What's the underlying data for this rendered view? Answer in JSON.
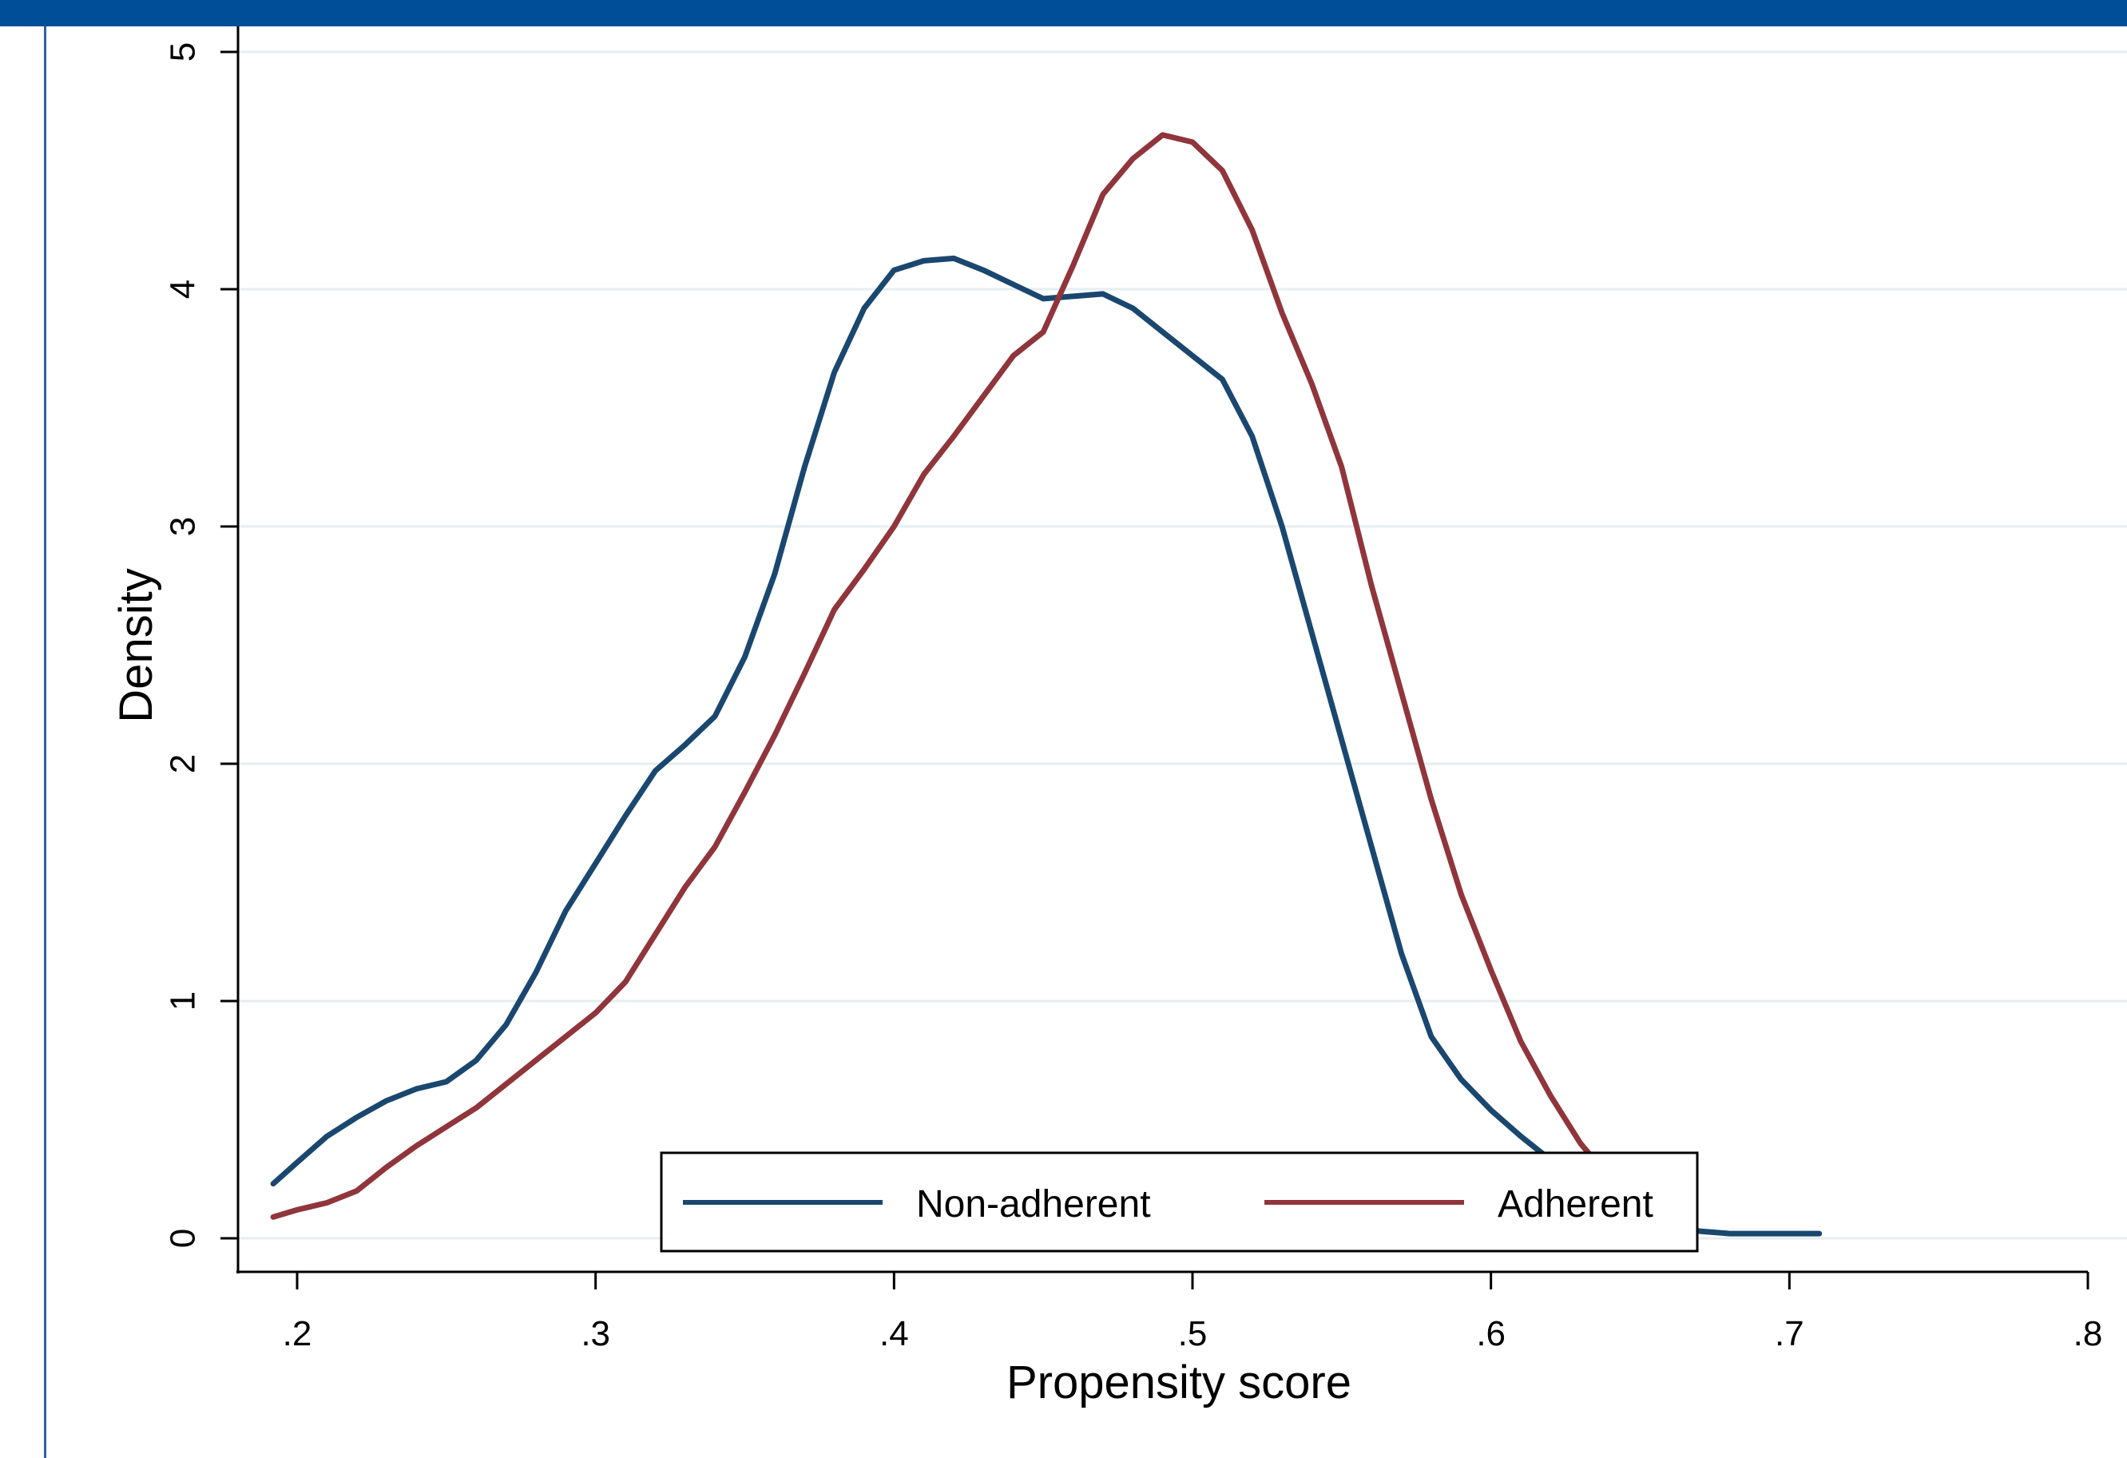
{
  "colors": {
    "header_bar": "#004e98",
    "left_rule": "#2f62a8",
    "gridline": "#e6eef0",
    "axis": "#000000"
  },
  "chart_data": {
    "type": "line",
    "title": "",
    "xlabel": "Propensity score",
    "ylabel": "Density",
    "xlim": [
      0.18,
      0.81
    ],
    "ylim": [
      0,
      5
    ],
    "x_ticks": [
      0.2,
      0.3,
      0.4,
      0.5,
      0.6,
      0.7,
      0.8
    ],
    "x_tick_labels": [
      ".2",
      ".3",
      ".4",
      ".5",
      ".6",
      ".7",
      ".8"
    ],
    "y_ticks": [
      0,
      1,
      2,
      3,
      4,
      5
    ],
    "y_tick_labels": [
      "0",
      "1",
      "2",
      "3",
      "4",
      "5"
    ],
    "grid": true,
    "legend_position": "bottom-center",
    "series": [
      {
        "name": "Non-adherent",
        "color": "#1a476f",
        "points": [
          [
            0.192,
            0.23
          ],
          [
            0.2,
            0.32
          ],
          [
            0.21,
            0.43
          ],
          [
            0.22,
            0.51
          ],
          [
            0.23,
            0.58
          ],
          [
            0.24,
            0.63
          ],
          [
            0.25,
            0.66
          ],
          [
            0.26,
            0.75
          ],
          [
            0.27,
            0.9
          ],
          [
            0.28,
            1.12
          ],
          [
            0.29,
            1.38
          ],
          [
            0.3,
            1.58
          ],
          [
            0.31,
            1.78
          ],
          [
            0.32,
            1.97
          ],
          [
            0.33,
            2.08
          ],
          [
            0.34,
            2.2
          ],
          [
            0.35,
            2.45
          ],
          [
            0.36,
            2.8
          ],
          [
            0.37,
            3.25
          ],
          [
            0.38,
            3.65
          ],
          [
            0.39,
            3.92
          ],
          [
            0.4,
            4.08
          ],
          [
            0.41,
            4.12
          ],
          [
            0.42,
            4.13
          ],
          [
            0.43,
            4.08
          ],
          [
            0.44,
            4.02
          ],
          [
            0.45,
            3.96
          ],
          [
            0.46,
            3.97
          ],
          [
            0.47,
            3.98
          ],
          [
            0.48,
            3.92
          ],
          [
            0.49,
            3.82
          ],
          [
            0.5,
            3.72
          ],
          [
            0.51,
            3.62
          ],
          [
            0.52,
            3.38
          ],
          [
            0.53,
            3.0
          ],
          [
            0.54,
            2.55
          ],
          [
            0.55,
            2.1
          ],
          [
            0.56,
            1.65
          ],
          [
            0.57,
            1.2
          ],
          [
            0.58,
            0.85
          ],
          [
            0.59,
            0.67
          ],
          [
            0.6,
            0.54
          ],
          [
            0.61,
            0.43
          ],
          [
            0.62,
            0.33
          ],
          [
            0.63,
            0.23
          ],
          [
            0.64,
            0.15
          ],
          [
            0.65,
            0.08
          ],
          [
            0.66,
            0.05
          ],
          [
            0.67,
            0.03
          ],
          [
            0.68,
            0.02
          ],
          [
            0.69,
            0.02
          ],
          [
            0.7,
            0.02
          ],
          [
            0.71,
            0.02
          ]
        ]
      },
      {
        "name": "Adherent",
        "color": "#90353b",
        "points": [
          [
            0.192,
            0.09
          ],
          [
            0.2,
            0.12
          ],
          [
            0.21,
            0.15
          ],
          [
            0.22,
            0.2
          ],
          [
            0.23,
            0.3
          ],
          [
            0.24,
            0.39
          ],
          [
            0.25,
            0.47
          ],
          [
            0.26,
            0.55
          ],
          [
            0.27,
            0.65
          ],
          [
            0.28,
            0.75
          ],
          [
            0.29,
            0.85
          ],
          [
            0.3,
            0.95
          ],
          [
            0.31,
            1.08
          ],
          [
            0.32,
            1.28
          ],
          [
            0.33,
            1.48
          ],
          [
            0.34,
            1.65
          ],
          [
            0.35,
            1.88
          ],
          [
            0.36,
            2.12
          ],
          [
            0.37,
            2.38
          ],
          [
            0.38,
            2.65
          ],
          [
            0.39,
            2.82
          ],
          [
            0.4,
            3.0
          ],
          [
            0.41,
            3.22
          ],
          [
            0.42,
            3.38
          ],
          [
            0.43,
            3.55
          ],
          [
            0.44,
            3.72
          ],
          [
            0.45,
            3.82
          ],
          [
            0.46,
            4.1
          ],
          [
            0.47,
            4.4
          ],
          [
            0.48,
            4.55
          ],
          [
            0.49,
            4.65
          ],
          [
            0.5,
            4.62
          ],
          [
            0.51,
            4.5
          ],
          [
            0.52,
            4.25
          ],
          [
            0.53,
            3.9
          ],
          [
            0.54,
            3.6
          ],
          [
            0.55,
            3.25
          ],
          [
            0.56,
            2.75
          ],
          [
            0.57,
            2.3
          ],
          [
            0.58,
            1.85
          ],
          [
            0.59,
            1.45
          ],
          [
            0.6,
            1.13
          ],
          [
            0.61,
            0.83
          ],
          [
            0.62,
            0.6
          ],
          [
            0.63,
            0.4
          ],
          [
            0.64,
            0.25
          ],
          [
            0.65,
            0.13
          ]
        ]
      }
    ]
  }
}
